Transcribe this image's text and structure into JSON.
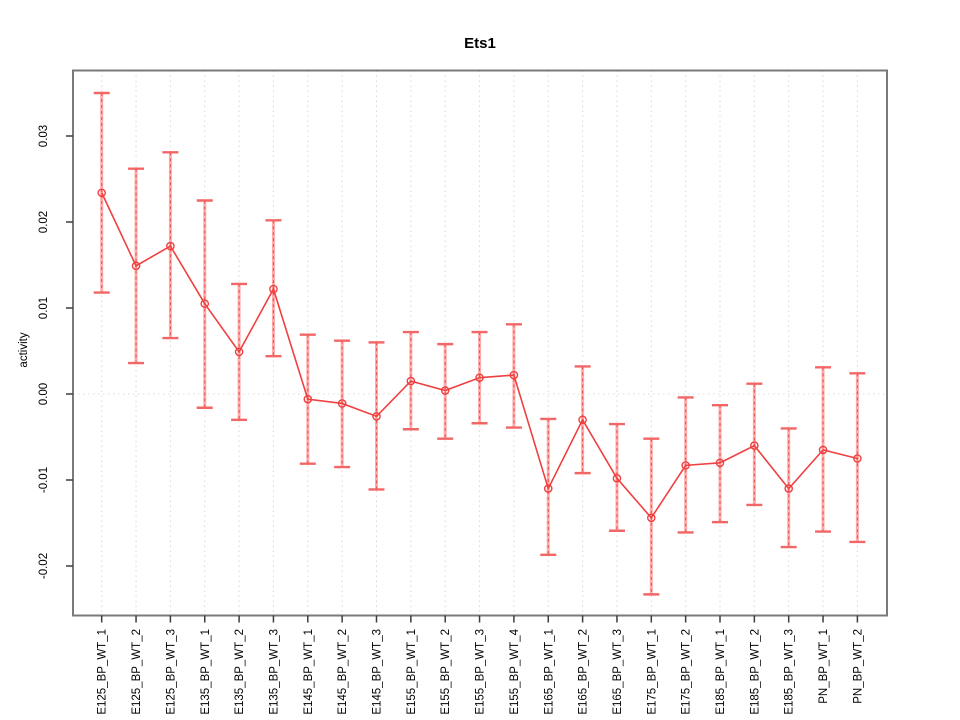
{
  "figure": {
    "title": "Ets1",
    "ylabel": "activity",
    "xlabel": ""
  },
  "chart_data": {
    "type": "line",
    "title": "Ets1",
    "xlabel": "",
    "ylabel": "activity",
    "legend": "none",
    "grid": "vertical dotted gridline at each category; dotted horizontal line at y=0",
    "marker": "open-circle",
    "error_bars": true,
    "categories": [
      "E125_BP_WT_1",
      "E125_BP_WT_2",
      "E125_BP_WT_3",
      "E135_BP_WT_1",
      "E135_BP_WT_2",
      "E135_BP_WT_3",
      "E145_BP_WT_1",
      "E145_BP_WT_2",
      "E145_BP_WT_3",
      "E155_BP_WT_1",
      "E155_BP_WT_2",
      "E155_BP_WT_3",
      "E155_BP_WT_4",
      "E165_BP_WT_1",
      "E165_BP_WT_2",
      "E165_BP_WT_3",
      "E175_BP_WT_1",
      "E175_BP_WT_2",
      "E185_BP_WT_1",
      "E185_BP_WT_2",
      "E185_BP_WT_3",
      "PN_BP_WT_1",
      "PN_BP_WT_2"
    ],
    "series": [
      {
        "name": "activity",
        "values": [
          0.0234,
          0.0149,
          0.0172,
          0.0105,
          0.0049,
          0.0122,
          -0.0006,
          -0.0011,
          -0.0026,
          0.0015,
          0.0004,
          0.0019,
          0.0022,
          -0.011,
          -0.003,
          -0.0098,
          -0.0144,
          -0.0083,
          -0.008,
          -0.006,
          -0.011,
          -0.0065,
          -0.0075
        ],
        "lower": [
          0.0118,
          0.0036,
          0.0065,
          -0.0016,
          -0.003,
          0.0044,
          -0.0081,
          -0.0085,
          -0.0111,
          -0.0041,
          -0.0052,
          -0.0034,
          -0.0039,
          -0.0187,
          -0.0092,
          -0.0159,
          -0.0233,
          -0.0161,
          -0.0149,
          -0.0129,
          -0.0178,
          -0.016,
          -0.0172
        ],
        "upper": [
          0.035,
          0.0262,
          0.0281,
          0.0225,
          0.0128,
          0.0202,
          0.0069,
          0.0062,
          0.006,
          0.0072,
          0.0058,
          0.0072,
          0.0081,
          -0.0029,
          0.0032,
          -0.0035,
          -0.0052,
          -0.0004,
          -0.0013,
          0.0012,
          -0.004,
          0.0031,
          0.0024
        ]
      }
    ],
    "yticks": [
      0.03,
      0.02,
      0.01,
      0,
      -0.01,
      -0.02
    ],
    "ytick_labels": [
      "0.03",
      "0.02",
      "0.01",
      "0.00",
      "-0.01",
      "-0.02"
    ],
    "ylim": [
      -0.0258,
      0.0376
    ],
    "colors": {
      "line": "#f04040",
      "marker_stroke": "#f04040",
      "error_shaft": "#ffabab",
      "error_dash": "#ef5350",
      "error_cap": "#f26666",
      "gridline": "#d9d9d9",
      "zero_line": "#d9d9d9",
      "border": "#7a7a7a",
      "tick": "#3c3c3c",
      "text": "#000000",
      "background": "#ffffff"
    }
  }
}
